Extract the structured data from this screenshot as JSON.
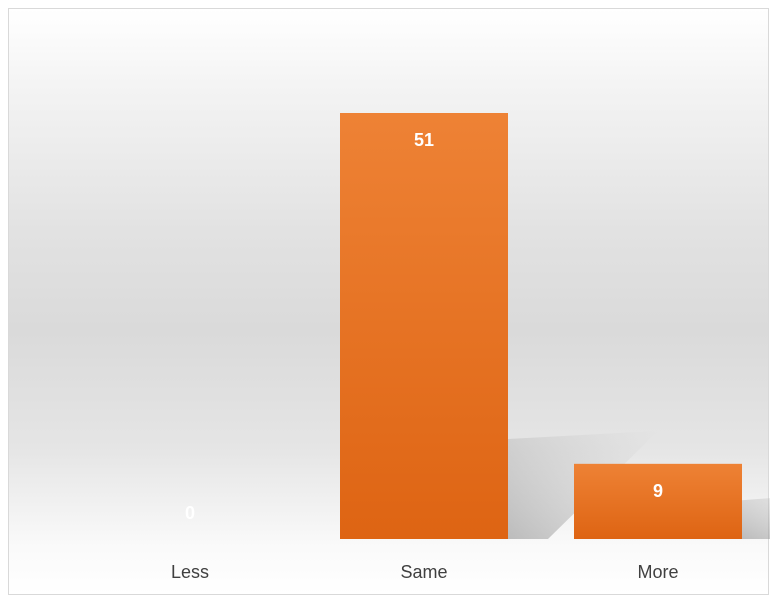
{
  "chart_data": {
    "type": "bar",
    "categories": [
      "Less",
      "Same",
      "More"
    ],
    "values": [
      0,
      51,
      9
    ],
    "data_labels": [
      "0",
      "51",
      "9"
    ],
    "title": "",
    "xlabel": "",
    "ylabel": "",
    "ylim": [
      0,
      51
    ],
    "grid": false,
    "legend": "none",
    "colors": {
      "bar_top": "#ee8235",
      "bar_bottom": "#de6413",
      "data_label": "#ffffff",
      "category_label": "#404040"
    }
  }
}
